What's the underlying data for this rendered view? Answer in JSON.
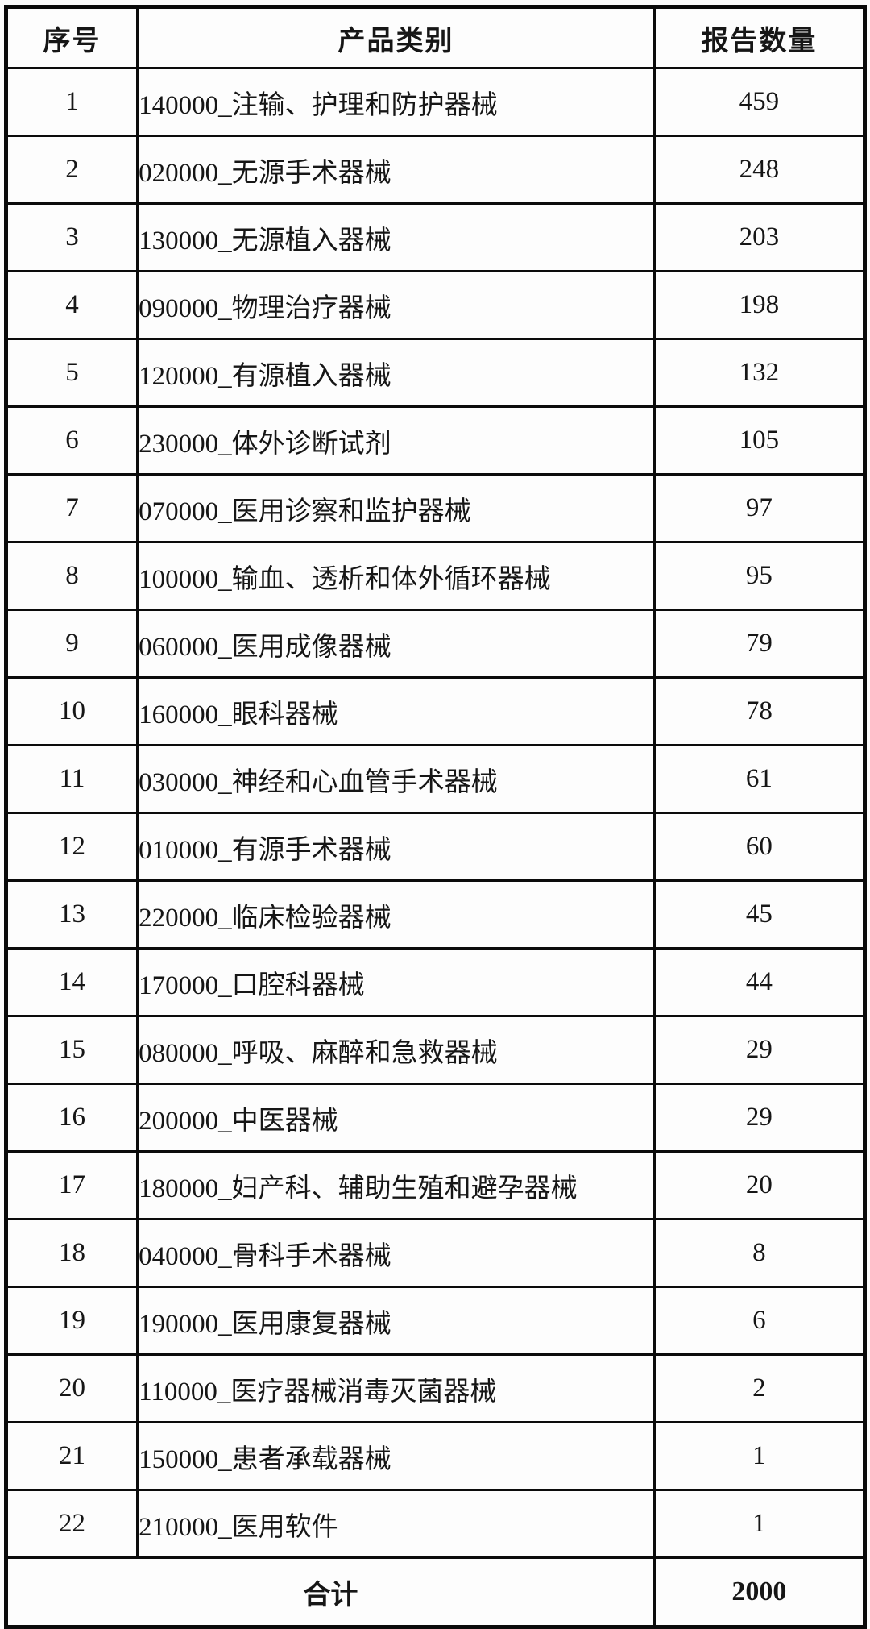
{
  "colors": {
    "border": "#0b0b0b",
    "text": "#161616",
    "background": "#fdfdfd"
  },
  "table": {
    "headers": [
      "序号",
      "产品类别",
      "报告数量"
    ],
    "rows": [
      {
        "no": "1",
        "category": "140000_注输、护理和防护器械",
        "count": "459"
      },
      {
        "no": "2",
        "category": "020000_无源手术器械",
        "count": "248"
      },
      {
        "no": "3",
        "category": "130000_无源植入器械",
        "count": "203"
      },
      {
        "no": "4",
        "category": "090000_物理治疗器械",
        "count": "198"
      },
      {
        "no": "5",
        "category": "120000_有源植入器械",
        "count": "132"
      },
      {
        "no": "6",
        "category": "230000_体外诊断试剂",
        "count": "105"
      },
      {
        "no": "7",
        "category": "070000_医用诊察和监护器械",
        "count": "97"
      },
      {
        "no": "8",
        "category": "100000_输血、透析和体外循环器械",
        "count": "95"
      },
      {
        "no": "9",
        "category": "060000_医用成像器械",
        "count": "79"
      },
      {
        "no": "10",
        "category": "160000_眼科器械",
        "count": "78"
      },
      {
        "no": "11",
        "category": "030000_神经和心血管手术器械",
        "count": "61"
      },
      {
        "no": "12",
        "category": "010000_有源手术器械",
        "count": "60"
      },
      {
        "no": "13",
        "category": "220000_临床检验器械",
        "count": "45"
      },
      {
        "no": "14",
        "category": "170000_口腔科器械",
        "count": "44"
      },
      {
        "no": "15",
        "category": "080000_呼吸、麻醉和急救器械",
        "count": "29"
      },
      {
        "no": "16",
        "category": "200000_中医器械",
        "count": "29"
      },
      {
        "no": "17",
        "category": "180000_妇产科、辅助生殖和避孕器械",
        "count": "20"
      },
      {
        "no": "18",
        "category": "040000_骨科手术器械",
        "count": "8"
      },
      {
        "no": "19",
        "category": "190000_医用康复器械",
        "count": "6"
      },
      {
        "no": "20",
        "category": "110000_医疗器械消毒灭菌器械",
        "count": "2"
      },
      {
        "no": "21",
        "category": "150000_患者承载器械",
        "count": "1"
      },
      {
        "no": "22",
        "category": "210000_医用软件",
        "count": "1"
      }
    ],
    "footer": {
      "label": "合计",
      "total": "2000"
    }
  }
}
